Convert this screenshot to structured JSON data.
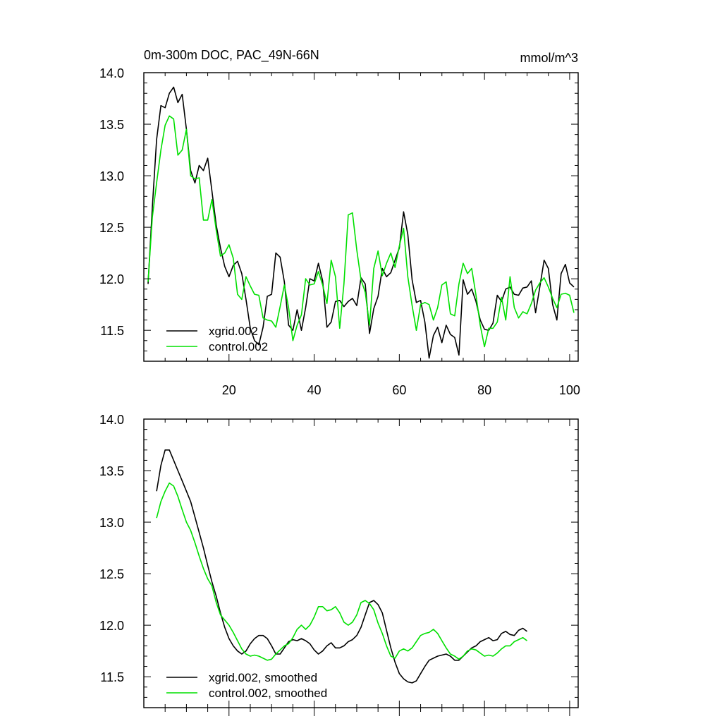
{
  "colors": {
    "xgrid": "#000000",
    "control": "#00e000",
    "frame": "#000000"
  },
  "chart_data": [
    {
      "type": "line",
      "title": "0m-300m DOC, PAC_49N-66N",
      "units": "mmol/m^3",
      "xlabel": "",
      "ylabel": "",
      "xlim": [
        0,
        102
      ],
      "ylim": [
        11.2,
        14.0
      ],
      "xticks": [
        "20",
        "40",
        "60",
        "80",
        "100"
      ],
      "yticks": [
        "11.5",
        "12.0",
        "12.5",
        "13.0",
        "13.5",
        "14.0"
      ],
      "legend_position": "bottom-left",
      "series": [
        {
          "name": "xgrid.002",
          "x_start": 1,
          "values": [
            11.95,
            12.7,
            13.35,
            13.68,
            13.66,
            13.8,
            13.86,
            13.71,
            13.79,
            13.45,
            13.05,
            12.93,
            13.1,
            13.05,
            13.17,
            12.85,
            12.52,
            12.3,
            12.12,
            12.02,
            12.13,
            12.17,
            12.05,
            11.8,
            11.52,
            11.4,
            11.36,
            11.53,
            11.83,
            11.85,
            12.25,
            12.21,
            11.97,
            11.55,
            11.5,
            11.7,
            11.5,
            11.72,
            12.0,
            11.98,
            12.15,
            11.98,
            11.53,
            11.58,
            11.78,
            11.79,
            11.73,
            11.78,
            11.81,
            11.74,
            12.01,
            11.95,
            11.47,
            11.71,
            11.83,
            12.1,
            12.02,
            12.06,
            12.18,
            12.3,
            12.65,
            12.43,
            11.99,
            11.77,
            11.79,
            11.58,
            11.23,
            11.45,
            11.53,
            11.38,
            11.55,
            11.46,
            11.43,
            11.26,
            11.99,
            11.85,
            11.9,
            11.78,
            11.6,
            11.51,
            11.5,
            11.57,
            11.84,
            11.78,
            11.9,
            11.92,
            11.85,
            11.84,
            11.91,
            11.92,
            11.98,
            11.67,
            11.92,
            12.18,
            12.1,
            11.75,
            11.6,
            12.05,
            12.14,
            11.96,
            11.92
          ]
        },
        {
          "name": "control.002",
          "x_start": 1,
          "values": [
            11.97,
            12.6,
            12.93,
            13.25,
            13.49,
            13.58,
            13.55,
            13.2,
            13.25,
            13.45,
            13.0,
            12.97,
            12.98,
            12.57,
            12.57,
            12.77,
            12.47,
            12.22,
            12.25,
            12.33,
            12.2,
            11.85,
            11.8,
            12.02,
            11.93,
            11.85,
            11.84,
            11.62,
            11.6,
            11.59,
            11.53,
            11.73,
            11.94,
            11.72,
            11.4,
            11.55,
            11.65,
            12.0,
            11.94,
            11.95,
            12.07,
            11.94,
            11.76,
            12.18,
            12.02,
            11.52,
            11.95,
            12.62,
            12.64,
            12.28,
            11.99,
            11.87,
            11.55,
            12.1,
            12.27,
            12.03,
            12.15,
            12.25,
            12.11,
            12.32,
            12.49,
            12.02,
            11.74,
            11.5,
            11.75,
            11.77,
            11.75,
            11.6,
            11.72,
            11.94,
            11.97,
            11.66,
            11.64,
            11.95,
            12.15,
            12.05,
            12.1,
            11.84,
            11.55,
            11.34,
            11.52,
            11.52,
            11.58,
            11.82,
            11.6,
            12.02,
            11.72,
            11.62,
            11.68,
            11.66,
            11.76,
            11.89,
            11.96,
            12.01,
            11.92,
            11.81,
            11.72,
            11.85,
            11.86,
            11.84,
            11.67
          ]
        }
      ]
    },
    {
      "type": "line",
      "title": "",
      "xlabel": "",
      "ylabel": "",
      "xlim": [
        0,
        102
      ],
      "ylim": [
        11.2,
        14.0
      ],
      "xticks": [],
      "yticks": [
        "11.5",
        "12.0",
        "12.5",
        "13.0",
        "13.5",
        "14.0"
      ],
      "legend_position": "bottom-left",
      "series": [
        {
          "name": "xgrid.002, smoothed",
          "x_start": 3,
          "values": [
            13.3,
            13.55,
            13.7,
            13.7,
            13.6,
            13.5,
            13.4,
            13.3,
            13.2,
            13.05,
            12.9,
            12.75,
            12.58,
            12.42,
            12.28,
            12.12,
            11.98,
            11.87,
            11.8,
            11.75,
            11.72,
            11.75,
            11.82,
            11.87,
            11.9,
            11.9,
            11.87,
            11.8,
            11.72,
            11.72,
            11.78,
            11.84,
            11.86,
            11.85,
            11.87,
            11.85,
            11.82,
            11.76,
            11.72,
            11.75,
            11.8,
            11.83,
            11.78,
            11.78,
            11.8,
            11.84,
            11.86,
            11.9,
            11.98,
            12.1,
            12.22,
            12.24,
            12.2,
            12.12,
            11.95,
            11.78,
            11.64,
            11.53,
            11.48,
            11.45,
            11.44,
            11.46,
            11.53,
            11.6,
            11.66,
            11.68,
            11.7,
            11.71,
            11.72,
            11.7,
            11.66,
            11.66,
            11.7,
            11.74,
            11.78,
            11.8,
            11.84,
            11.86,
            11.88,
            11.85,
            11.86,
            11.92,
            11.94,
            11.91,
            11.9,
            11.95,
            11.97,
            11.94
          ]
        },
        {
          "name": "control.002, smoothed",
          "x_start": 3,
          "values": [
            13.04,
            13.2,
            13.3,
            13.38,
            13.35,
            13.25,
            13.12,
            13.0,
            12.92,
            12.8,
            12.67,
            12.55,
            12.45,
            12.38,
            12.22,
            12.1,
            12.05,
            12.0,
            11.93,
            11.85,
            11.77,
            11.72,
            11.7,
            11.71,
            11.7,
            11.68,
            11.66,
            11.67,
            11.72,
            11.76,
            11.8,
            11.82,
            11.88,
            11.96,
            12.0,
            11.96,
            12.0,
            12.08,
            12.18,
            12.18,
            12.14,
            12.15,
            12.18,
            12.12,
            12.03,
            12.0,
            12.03,
            12.1,
            12.22,
            12.24,
            12.21,
            12.15,
            12.02,
            11.92,
            11.8,
            11.7,
            11.68,
            11.75,
            11.77,
            11.75,
            11.78,
            11.84,
            11.9,
            11.92,
            11.93,
            11.96,
            11.92,
            11.85,
            11.78,
            11.72,
            11.7,
            11.67,
            11.7,
            11.75,
            11.77,
            11.76,
            11.73,
            11.7,
            11.71,
            11.7,
            11.73,
            11.77,
            11.8,
            11.8,
            11.84,
            11.86,
            11.88,
            11.85
          ]
        }
      ]
    }
  ]
}
